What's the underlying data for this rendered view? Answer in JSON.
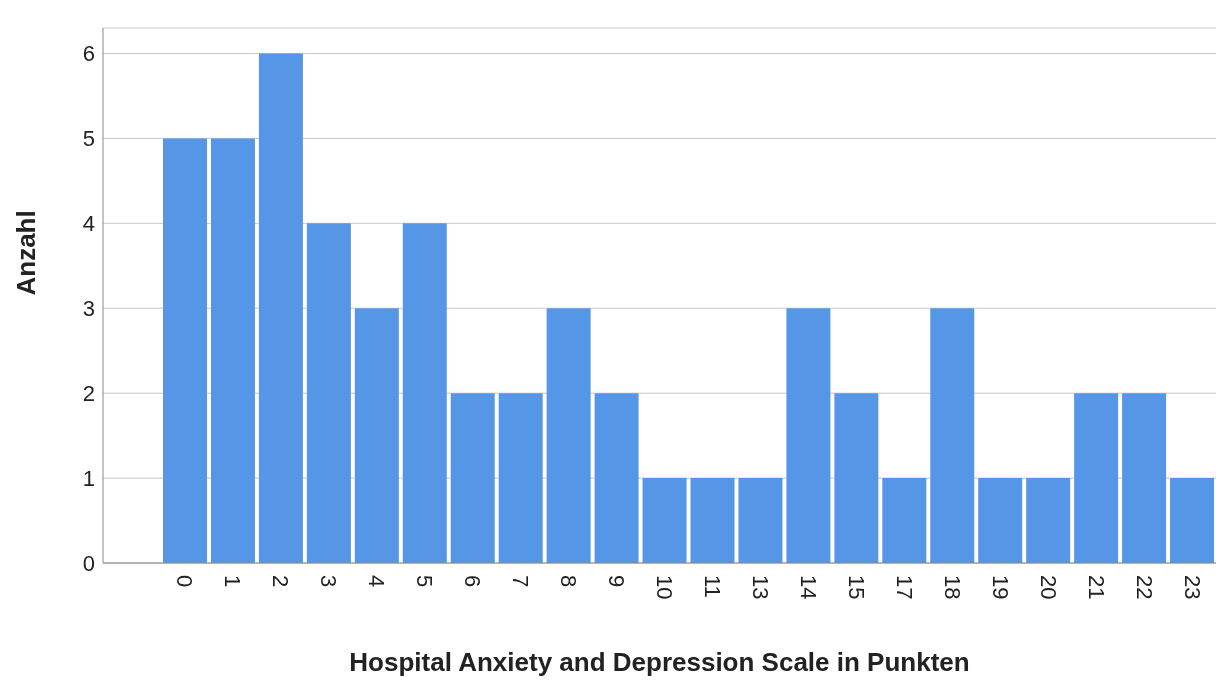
{
  "chart_data": {
    "type": "bar",
    "xlabel": "Hospital Anxiety and Depression Scale in Punkten",
    "ylabel": "Anzahl",
    "categories": [
      "0",
      "1",
      "2",
      "3",
      "4",
      "5",
      "6",
      "7",
      "8",
      "9",
      "10",
      "11",
      "13",
      "14",
      "15",
      "17",
      "18",
      "19",
      "20",
      "21",
      "22",
      "23"
    ],
    "values": [
      5,
      5,
      6,
      4,
      3,
      4,
      2,
      2,
      3,
      2,
      1,
      1,
      1,
      3,
      2,
      1,
      3,
      1,
      1,
      2,
      2,
      1
    ],
    "color": "#5596e6",
    "ylim": [
      0,
      6.3
    ],
    "yticks": [
      0,
      1,
      2,
      3,
      4,
      5,
      6
    ],
    "grid": "y"
  }
}
